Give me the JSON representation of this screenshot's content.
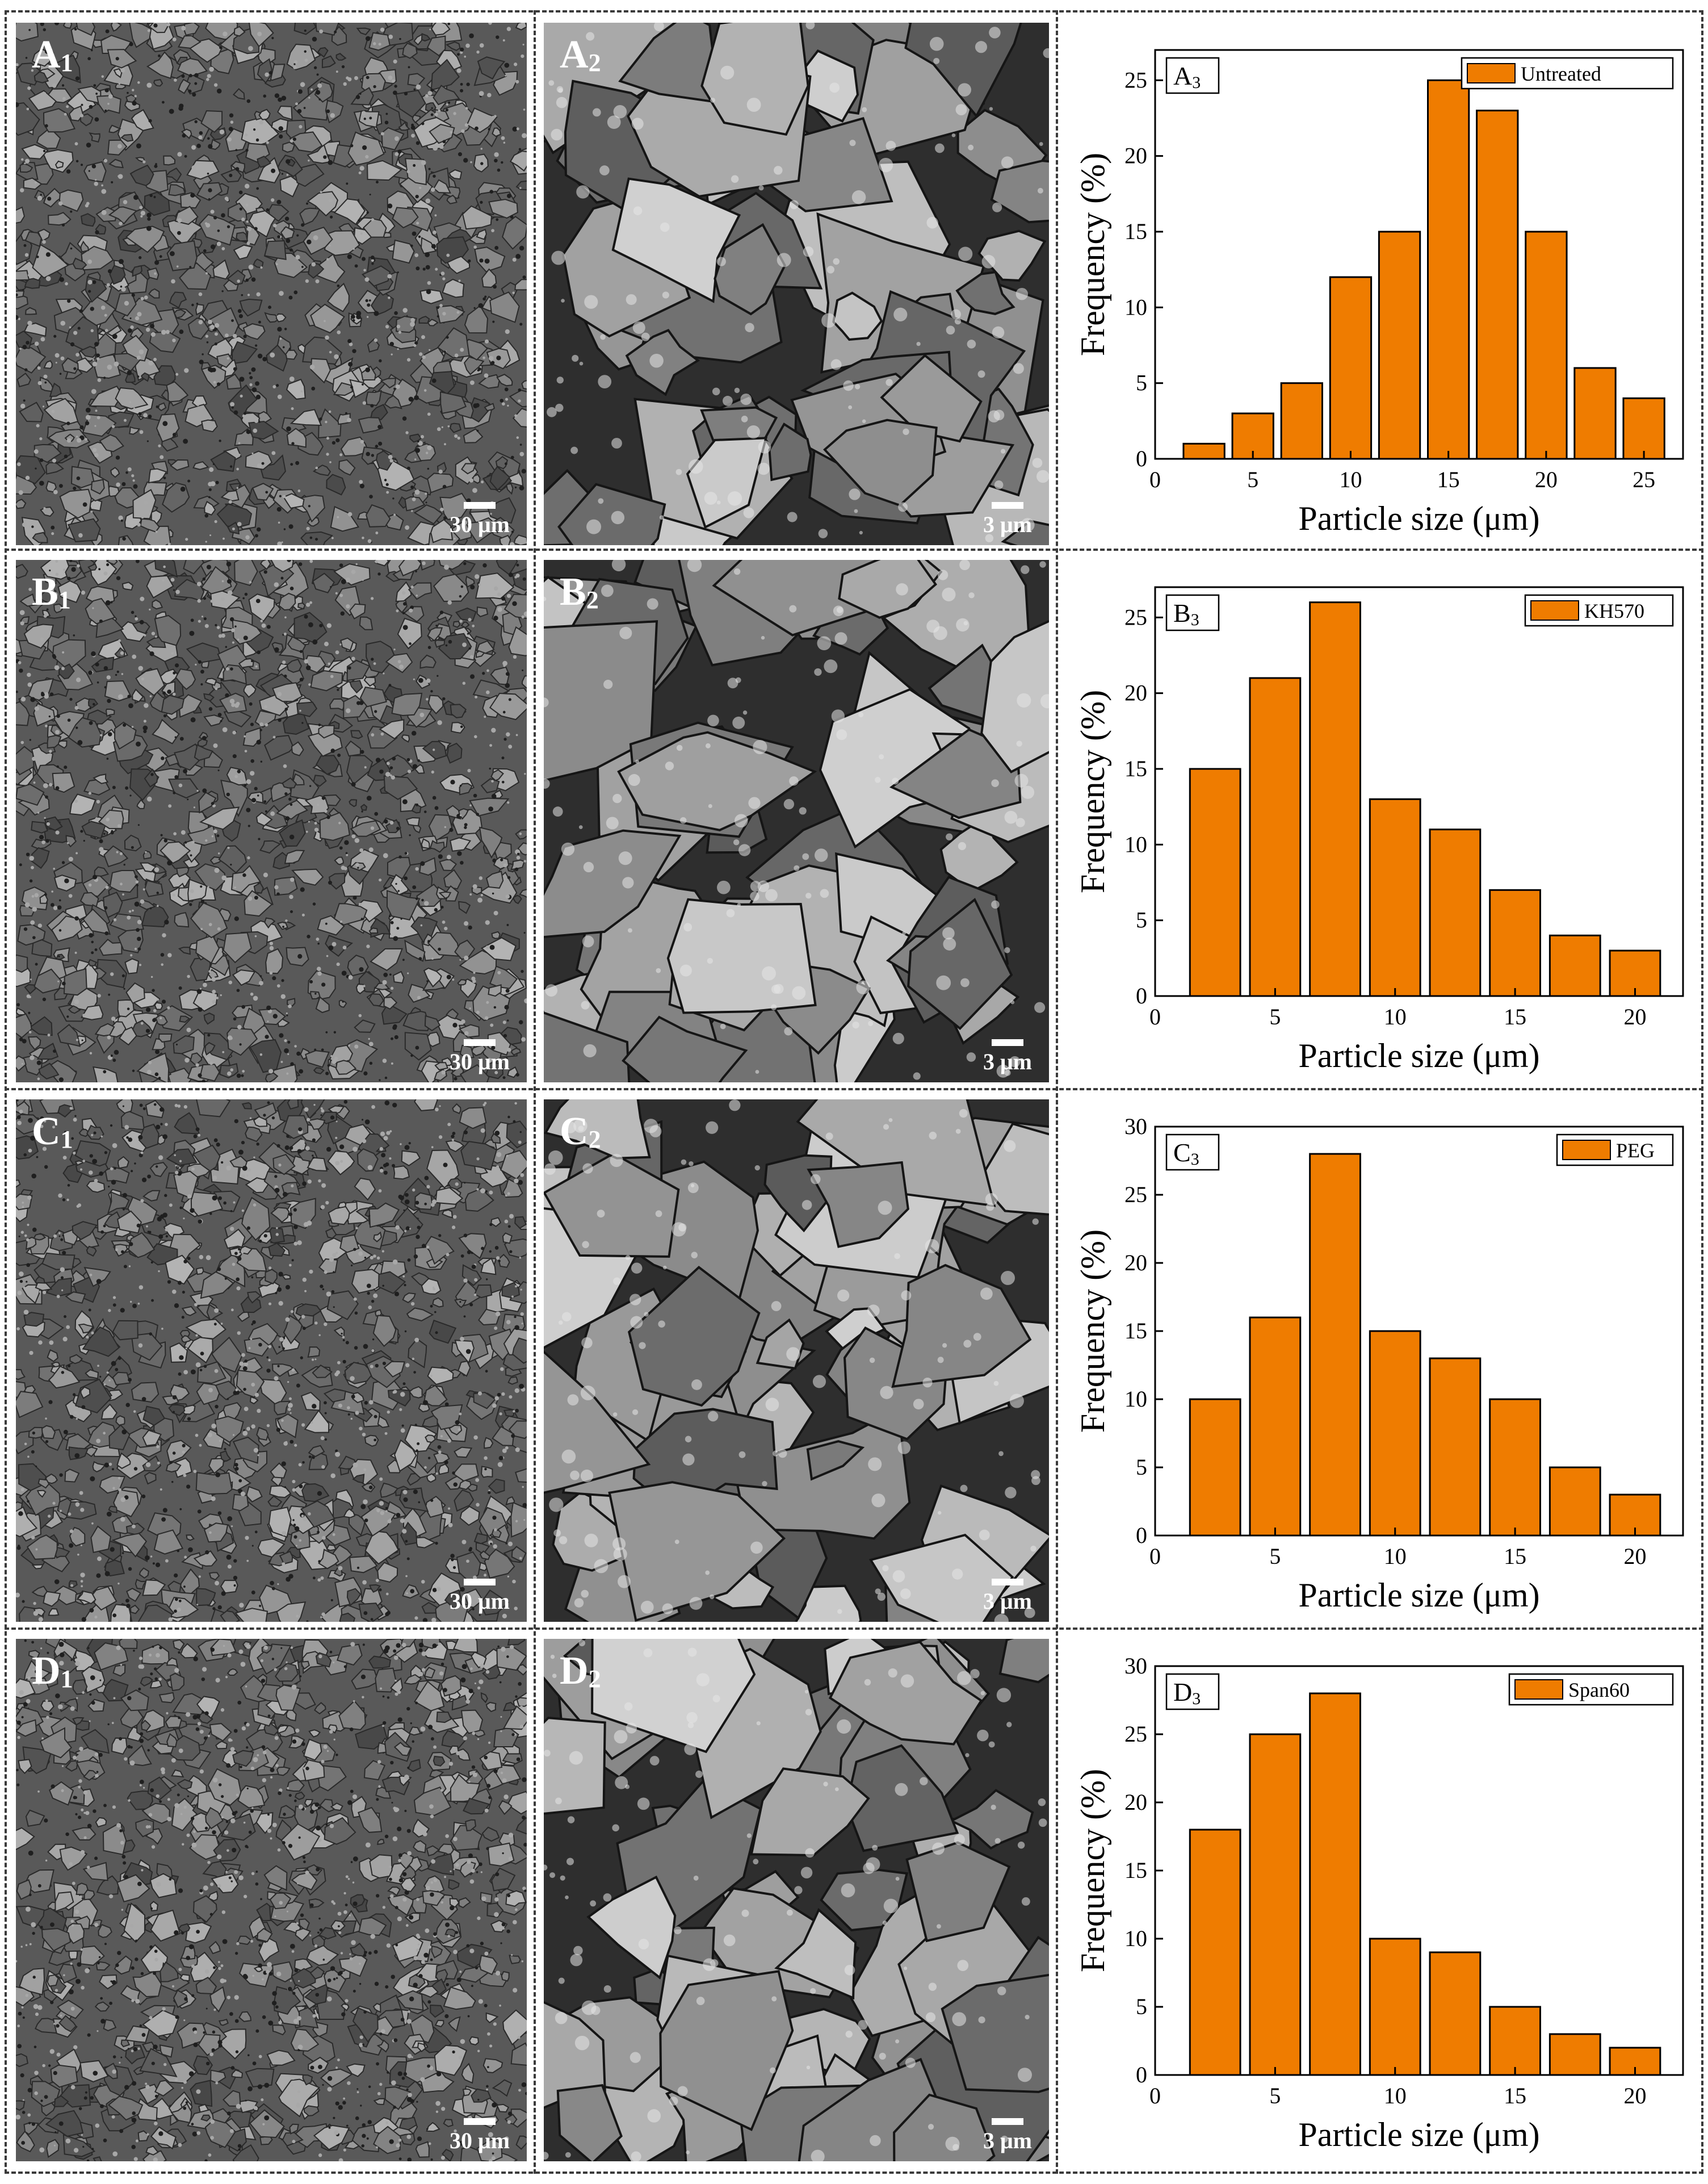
{
  "rows": [
    {
      "id": "A",
      "sem_low": {
        "label_letter": "A",
        "label_sub": "1",
        "scale_text": "30 μm"
      },
      "sem_high": {
        "label_letter": "A",
        "label_sub": "2",
        "scale_text": "3 μm"
      },
      "chart": {
        "panel_letter": "A",
        "panel_sub": "3"
      }
    },
    {
      "id": "B",
      "sem_low": {
        "label_letter": "B",
        "label_sub": "1",
        "scale_text": "30 μm"
      },
      "sem_high": {
        "label_letter": "B",
        "label_sub": "2",
        "scale_text": "3 μm"
      },
      "chart": {
        "panel_letter": "B",
        "panel_sub": "3"
      }
    },
    {
      "id": "C",
      "sem_low": {
        "label_letter": "C",
        "label_sub": "1",
        "scale_text": "30 μm"
      },
      "sem_high": {
        "label_letter": "C",
        "label_sub": "2",
        "scale_text": "3 μm"
      },
      "chart": {
        "panel_letter": "C",
        "panel_sub": "3"
      }
    },
    {
      "id": "D",
      "sem_low": {
        "label_letter": "D",
        "label_sub": "1",
        "scale_text": "30 μm"
      },
      "sem_high": {
        "label_letter": "D",
        "label_sub": "2",
        "scale_text": "3 μm"
      },
      "chart": {
        "panel_letter": "D",
        "panel_sub": "3"
      }
    }
  ],
  "colors": {
    "bar_fill": "#ef7c00",
    "bar_stroke": "#000000",
    "axis": "#000000"
  },
  "chart_data": [
    {
      "type": "bar",
      "panel": "A3",
      "legend": "Untreated",
      "legend_position": "top-right",
      "x": [
        2.5,
        5,
        7.5,
        10,
        12.5,
        15,
        17.5,
        20,
        22.5,
        25
      ],
      "values": [
        1,
        3,
        5,
        12,
        15,
        25,
        23,
        15,
        6,
        4
      ],
      "xlim": [
        0,
        27
      ],
      "ylim": [
        0,
        27
      ],
      "xticks": [
        0,
        5,
        10,
        15,
        20,
        25
      ],
      "yticks": [
        0,
        5,
        10,
        15,
        20,
        25
      ],
      "xlabel": "Particle size (μm)",
      "ylabel": "Frequency (%)",
      "grid": false
    },
    {
      "type": "bar",
      "panel": "B3",
      "legend": "KH570",
      "legend_position": "top-right",
      "x": [
        2.5,
        5,
        7.5,
        10,
        12.5,
        15,
        17.5,
        20
      ],
      "values": [
        15,
        21,
        26,
        13,
        11,
        7,
        4,
        3
      ],
      "xlim": [
        0,
        22
      ],
      "ylim": [
        0,
        27
      ],
      "xticks": [
        0,
        5,
        10,
        15,
        20
      ],
      "yticks": [
        0,
        5,
        10,
        15,
        20,
        25
      ],
      "xlabel": "Particle size (μm)",
      "ylabel": "Frequency (%)",
      "grid": false
    },
    {
      "type": "bar",
      "panel": "C3",
      "legend": "PEG",
      "legend_position": "top-right",
      "x": [
        2.5,
        5,
        7.5,
        10,
        12.5,
        15,
        17.5,
        20
      ],
      "values": [
        10,
        16,
        28,
        15,
        13,
        10,
        5,
        3
      ],
      "xlim": [
        0,
        22
      ],
      "ylim": [
        0,
        30
      ],
      "xticks": [
        0,
        5,
        10,
        15,
        20
      ],
      "yticks": [
        0,
        5,
        10,
        15,
        20,
        25,
        30
      ],
      "xlabel": "Particle size (μm)",
      "ylabel": "Frequency (%)",
      "grid": false
    },
    {
      "type": "bar",
      "panel": "D3",
      "legend": "Span60",
      "legend_position": "top-right",
      "x": [
        2.5,
        5,
        7.5,
        10,
        12.5,
        15,
        17.5,
        20
      ],
      "values": [
        18,
        25,
        28,
        10,
        9,
        5,
        3,
        2
      ],
      "xlim": [
        0,
        22
      ],
      "ylim": [
        0,
        30
      ],
      "xticks": [
        0,
        5,
        10,
        15,
        20
      ],
      "yticks": [
        0,
        5,
        10,
        15,
        20,
        25,
        30
      ],
      "xlabel": "Particle size (μm)",
      "ylabel": "Frequency (%)",
      "grid": false
    }
  ]
}
